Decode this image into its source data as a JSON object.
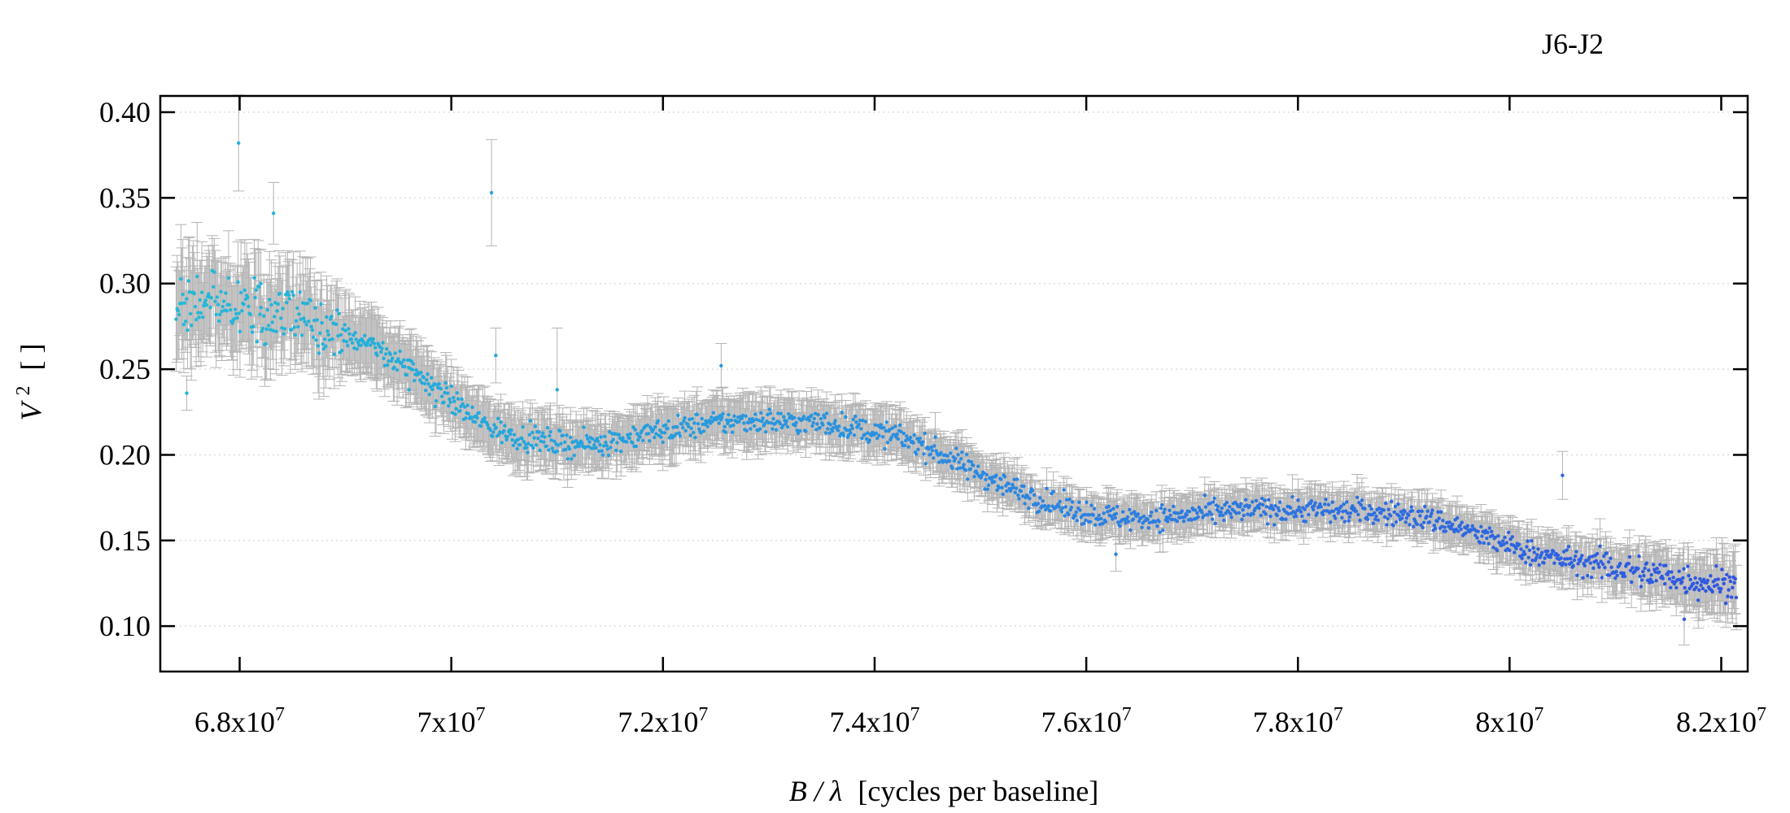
{
  "chart_data": {
    "type": "scatter",
    "title": "J6-J2",
    "xlabel": {
      "var": "B / λ",
      "units": "[cycles per baseline]"
    },
    "ylabel": {
      "var": "V",
      "sup": "2",
      "units": "[ ]"
    },
    "xlim": [
      67250000,
      82250000
    ],
    "ylim": [
      0.0735,
      0.4095
    ],
    "x_ticks": [
      {
        "value": 68000000,
        "mantissa": "6.8x10",
        "exp": "7"
      },
      {
        "value": 70000000,
        "mantissa": "7x10",
        "exp": "7"
      },
      {
        "value": 72000000,
        "mantissa": "7.2x10",
        "exp": "7"
      },
      {
        "value": 74000000,
        "mantissa": "7.4x10",
        "exp": "7"
      },
      {
        "value": 76000000,
        "mantissa": "7.6x10",
        "exp": "7"
      },
      {
        "value": 78000000,
        "mantissa": "7.8x10",
        "exp": "7"
      },
      {
        "value": 80000000,
        "mantissa": "8x10",
        "exp": "7"
      },
      {
        "value": 82000000,
        "mantissa": "8.2x10",
        "exp": "7"
      }
    ],
    "y_ticks": [
      {
        "value": 0.1,
        "label": "0.10"
      },
      {
        "value": 0.15,
        "label": "0.15"
      },
      {
        "value": 0.2,
        "label": "0.20"
      },
      {
        "value": 0.25,
        "label": "0.25"
      },
      {
        "value": 0.3,
        "label": "0.30"
      },
      {
        "value": 0.35,
        "label": "0.35"
      },
      {
        "value": 0.4,
        "label": "0.40"
      }
    ],
    "grid": {
      "horizontal": true,
      "style": "dotted",
      "color": "#dddddd"
    },
    "marker_colors": {
      "low_x": "#22bbd8",
      "mid_x": "#2b8be0",
      "high_x": "#2f55e0"
    },
    "error_bar_color": "#b4b4b4",
    "series": [
      {
        "points": [
          [
            67400000,
            0.287,
            0.024
          ],
          [
            67600000,
            0.289,
            0.024
          ],
          [
            67800000,
            0.288,
            0.024
          ],
          [
            68000000,
            0.286,
            0.024
          ],
          [
            68200000,
            0.284,
            0.022
          ],
          [
            68400000,
            0.282,
            0.022
          ],
          [
            68600000,
            0.279,
            0.021
          ],
          [
            68800000,
            0.276,
            0.021
          ],
          [
            69000000,
            0.271,
            0.018
          ],
          [
            69200000,
            0.265,
            0.017
          ],
          [
            69400000,
            0.258,
            0.016
          ],
          [
            69600000,
            0.25,
            0.015
          ],
          [
            69800000,
            0.241,
            0.015
          ],
          [
            70000000,
            0.232,
            0.014
          ],
          [
            70200000,
            0.222,
            0.014
          ],
          [
            70400000,
            0.215,
            0.014
          ],
          [
            70600000,
            0.211,
            0.014
          ],
          [
            70800000,
            0.209,
            0.014
          ],
          [
            71000000,
            0.207,
            0.013
          ],
          [
            71200000,
            0.206,
            0.013
          ],
          [
            71400000,
            0.207,
            0.013
          ],
          [
            71600000,
            0.209,
            0.013
          ],
          [
            71800000,
            0.212,
            0.013
          ],
          [
            72000000,
            0.214,
            0.013
          ],
          [
            72200000,
            0.216,
            0.013
          ],
          [
            72400000,
            0.218,
            0.013
          ],
          [
            72600000,
            0.219,
            0.013
          ],
          [
            72800000,
            0.22,
            0.013
          ],
          [
            73000000,
            0.22,
            0.012
          ],
          [
            73200000,
            0.219,
            0.012
          ],
          [
            73400000,
            0.219,
            0.012
          ],
          [
            73600000,
            0.218,
            0.012
          ],
          [
            73800000,
            0.216,
            0.012
          ],
          [
            74000000,
            0.213,
            0.012
          ],
          [
            74200000,
            0.211,
            0.011
          ],
          [
            74400000,
            0.207,
            0.011
          ],
          [
            74600000,
            0.201,
            0.011
          ],
          [
            74800000,
            0.195,
            0.011
          ],
          [
            75000000,
            0.189,
            0.01
          ],
          [
            75200000,
            0.183,
            0.01
          ],
          [
            75400000,
            0.178,
            0.01
          ],
          [
            75600000,
            0.173,
            0.01
          ],
          [
            75800000,
            0.169,
            0.01
          ],
          [
            76000000,
            0.166,
            0.01
          ],
          [
            76200000,
            0.164,
            0.01
          ],
          [
            76400000,
            0.163,
            0.01
          ],
          [
            76600000,
            0.163,
            0.01
          ],
          [
            76800000,
            0.164,
            0.01
          ],
          [
            77000000,
            0.165,
            0.01
          ],
          [
            77200000,
            0.166,
            0.01
          ],
          [
            77400000,
            0.167,
            0.01
          ],
          [
            77600000,
            0.168,
            0.01
          ],
          [
            77800000,
            0.168,
            0.01
          ],
          [
            78000000,
            0.168,
            0.01
          ],
          [
            78200000,
            0.168,
            0.01
          ],
          [
            78400000,
            0.167,
            0.01
          ],
          [
            78600000,
            0.167,
            0.01
          ],
          [
            78800000,
            0.166,
            0.01
          ],
          [
            79000000,
            0.165,
            0.01
          ],
          [
            79200000,
            0.163,
            0.01
          ],
          [
            79400000,
            0.16,
            0.01
          ],
          [
            79600000,
            0.156,
            0.01
          ],
          [
            79800000,
            0.151,
            0.011
          ],
          [
            80000000,
            0.147,
            0.011
          ],
          [
            80200000,
            0.143,
            0.011
          ],
          [
            80400000,
            0.14,
            0.011
          ],
          [
            80600000,
            0.138,
            0.011
          ],
          [
            80800000,
            0.136,
            0.012
          ],
          [
            81000000,
            0.134,
            0.012
          ],
          [
            81200000,
            0.132,
            0.012
          ],
          [
            81400000,
            0.13,
            0.013
          ],
          [
            81600000,
            0.128,
            0.013
          ],
          [
            81800000,
            0.126,
            0.014
          ],
          [
            82000000,
            0.125,
            0.016
          ]
        ],
        "outliers": [
          [
            67990000,
            0.382,
            0.028
          ],
          [
            68320000,
            0.341,
            0.018
          ],
          [
            70380000,
            0.353,
            0.031
          ],
          [
            70420000,
            0.258,
            0.016
          ],
          [
            71000000,
            0.238,
            0.036
          ],
          [
            80500000,
            0.188,
            0.014
          ],
          [
            76280000,
            0.142,
            0.01
          ],
          [
            81650000,
            0.104,
            0.015
          ],
          [
            68200000,
            0.3,
            0.02
          ],
          [
            72550000,
            0.252,
            0.013
          ],
          [
            67500000,
            0.236,
            0.01
          ],
          [
            69600000,
            0.238,
            0.01
          ]
        ]
      }
    ]
  }
}
